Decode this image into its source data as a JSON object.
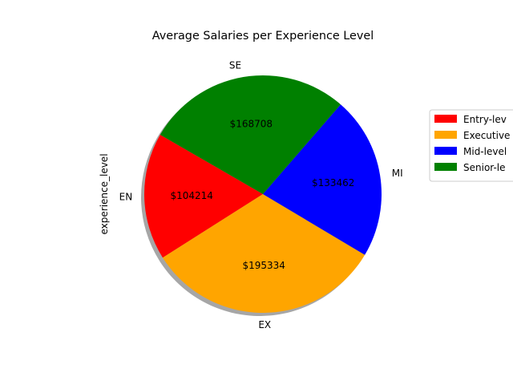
{
  "chart_data": {
    "type": "pie",
    "title": "Average Salaries per Experience Level",
    "ylabel": "experience_level",
    "categories": [
      "EN",
      "EX",
      "MI",
      "SE"
    ],
    "values": [
      104214,
      195334,
      133462,
      168708
    ],
    "value_labels": [
      "$104214",
      "$195334",
      "$133462",
      "$168708"
    ],
    "colors": [
      "#ff0000",
      "#ffa500",
      "#0000ff",
      "#008000"
    ],
    "legend": {
      "placement": "right",
      "entries": [
        "Entry-lev",
        "Executive",
        "Mid-level",
        "Senior-le"
      ]
    },
    "start_angle_deg": 150,
    "shadow": true
  }
}
